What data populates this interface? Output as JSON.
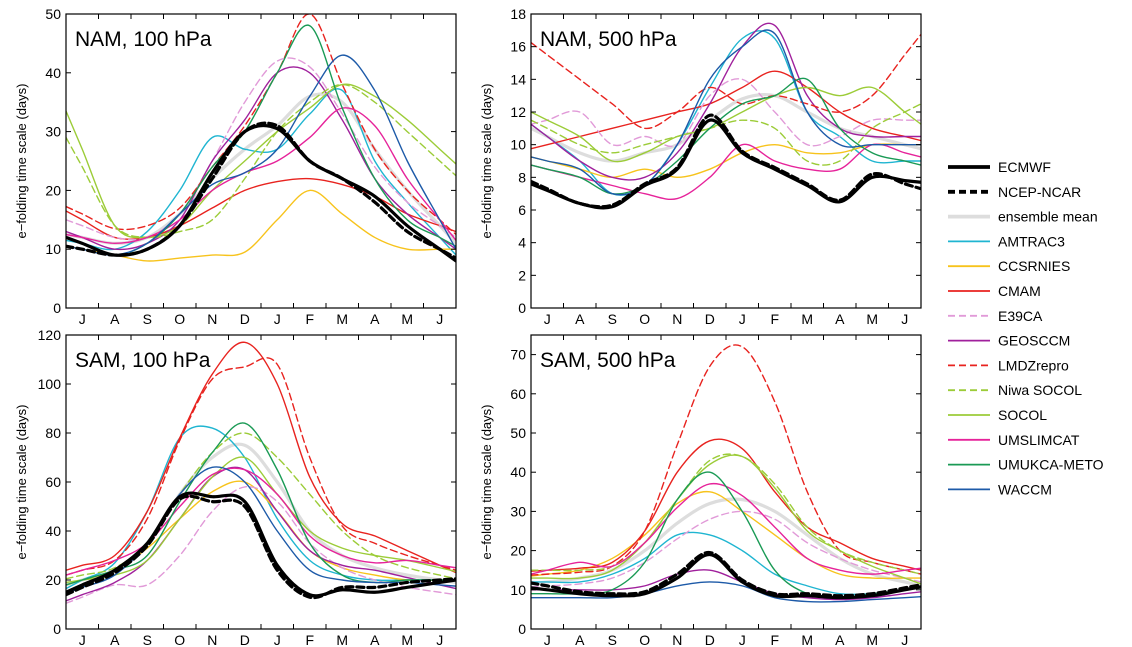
{
  "figure": {
    "legend": [
      "ECMWF",
      "NCEP-NCAR",
      "ensemble mean",
      "AMTRAC3",
      "CCSRNIES",
      "CMAM",
      "E39CA",
      "GEOSCCM",
      "LMDZrepro",
      "Niwa SOCOL",
      "SOCOL",
      "UMSLIMCAT",
      "UMUKCA-METO",
      "WACCM"
    ],
    "series_style": {
      "ECMWF": {
        "color": "#000000",
        "dash": "solid",
        "width": "thick"
      },
      "NCEP-NCAR": {
        "color": "#000000",
        "dash": "dashed",
        "width": "thick"
      },
      "ensemble mean": {
        "color": "#dddddd",
        "dash": "solid",
        "width": "thick"
      },
      "AMTRAC3": {
        "color": "#1fb5d1",
        "dash": "solid",
        "width": "thin"
      },
      "CCSRNIES": {
        "color": "#f7c31c",
        "dash": "solid",
        "width": "thin"
      },
      "CMAM": {
        "color": "#e8231f",
        "dash": "solid",
        "width": "thin"
      },
      "E39CA": {
        "color": "#e19ad8",
        "dash": "dashed",
        "width": "thin"
      },
      "GEOSCCM": {
        "color": "#a0209c",
        "dash": "solid",
        "width": "thin"
      },
      "LMDZrepro": {
        "color": "#e8231f",
        "dash": "dashed",
        "width": "thin"
      },
      "Niwa SOCOL": {
        "color": "#9ccc38",
        "dash": "dashed",
        "width": "thin"
      },
      "SOCOL": {
        "color": "#9ccc38",
        "dash": "solid",
        "width": "thin"
      },
      "UMSLIMCAT": {
        "color": "#e6239a",
        "dash": "solid",
        "width": "thin"
      },
      "UMUKCA-METO": {
        "color": "#1a9a55",
        "dash": "solid",
        "width": "thin"
      },
      "WACCM": {
        "color": "#1d5aa8",
        "dash": "solid",
        "width": "thin"
      }
    }
  },
  "chart_data": [
    {
      "type": "line",
      "title": "NAM, 100 hPa",
      "xlabel": "",
      "ylabel": "e−folding time scale (days)",
      "categories": [
        "J",
        "A",
        "S",
        "O",
        "N",
        "D",
        "J",
        "F",
        "M",
        "A",
        "M",
        "J"
      ],
      "ylim": [
        0,
        50
      ],
      "yticks": [
        0,
        10,
        20,
        30,
        40,
        50
      ],
      "series": [
        {
          "name": "ECMWF",
          "values": [
            11,
            9,
            10,
            14,
            23,
            30,
            30.5,
            25,
            22,
            19,
            14,
            10
          ]
        },
        {
          "name": "NCEP-NCAR",
          "values": [
            10,
            9,
            10,
            14,
            22,
            30,
            31,
            25,
            22,
            18,
            13,
            10
          ]
        },
        {
          "name": "ensemble mean",
          "values": [
            12,
            11,
            12,
            16,
            22,
            27,
            31,
            36,
            35,
            27,
            20,
            14
          ]
        },
        {
          "name": "AMTRAC3",
          "values": [
            11,
            10,
            13,
            20,
            29,
            27,
            27,
            33,
            37,
            25,
            18,
            12
          ]
        },
        {
          "name": "CCSRNIES",
          "values": [
            10,
            9,
            8,
            8.5,
            9,
            9.5,
            15,
            20,
            16,
            12,
            10,
            10
          ]
        },
        {
          "name": "CMAM",
          "values": [
            15,
            12,
            12,
            14,
            17,
            20,
            21.5,
            22,
            21,
            19,
            16,
            14
          ]
        },
        {
          "name": "E39CA",
          "values": [
            14,
            12,
            12,
            16,
            25,
            35,
            42,
            41,
            33,
            24,
            18,
            14
          ]
        },
        {
          "name": "GEOSCCM",
          "values": [
            12,
            10,
            11,
            15,
            25,
            32,
            40,
            40,
            32,
            22,
            16,
            12
          ]
        },
        {
          "name": "LMDZrepro",
          "values": [
            16,
            13.5,
            14,
            17,
            24,
            31,
            40,
            50,
            38,
            27,
            20,
            15
          ]
        },
        {
          "name": "Niwa SOCOL",
          "values": [
            24,
            14,
            12,
            13,
            15,
            22,
            30,
            35,
            38,
            35,
            30,
            25
          ]
        },
        {
          "name": "SOCOL",
          "values": [
            27,
            14,
            12,
            14,
            20,
            25,
            30,
            34,
            38,
            36,
            32,
            27
          ]
        },
        {
          "name": "UMSLIMCAT",
          "values": [
            12,
            11,
            12,
            15,
            20,
            23,
            25,
            29,
            34,
            31,
            22,
            15
          ]
        },
        {
          "name": "UMUKCA-METO",
          "values": [
            11,
            9,
            11,
            16,
            24,
            30,
            40,
            48,
            34,
            22,
            15,
            12
          ]
        },
        {
          "name": "WACCM",
          "values": [
            10,
            9,
            11,
            16,
            21,
            23,
            27,
            36,
            43,
            37,
            25,
            15
          ]
        }
      ]
    },
    {
      "type": "line",
      "title": "NAM, 500 hPa",
      "xlabel": "",
      "ylabel": "e−folding time scale (days)",
      "categories": [
        "J",
        "A",
        "S",
        "O",
        "N",
        "D",
        "J",
        "F",
        "M",
        "A",
        "M",
        "J"
      ],
      "ylim": [
        0,
        18
      ],
      "yticks": [
        0,
        2,
        4,
        6,
        8,
        10,
        12,
        14,
        16,
        18
      ],
      "series": [
        {
          "name": "ECMWF",
          "values": [
            7.2,
            6.4,
            6.2,
            7.5,
            8.5,
            11.5,
            9.5,
            8.5,
            7.5,
            6.5,
            8,
            7.8
          ]
        },
        {
          "name": "NCEP-NCAR",
          "values": [
            7.3,
            6.4,
            6.3,
            7.6,
            8.6,
            11.8,
            9.6,
            8.6,
            7.6,
            6.6,
            8.2,
            7.6
          ]
        },
        {
          "name": "ensemble mean",
          "values": [
            10.5,
            9.5,
            9,
            9.5,
            10,
            11.5,
            12.8,
            13,
            12,
            11,
            10.5,
            10
          ]
        },
        {
          "name": "AMTRAC3",
          "values": [
            10.5,
            9,
            7,
            7.5,
            10,
            13.5,
            16.5,
            16.5,
            12,
            10.5,
            9,
            9
          ]
        },
        {
          "name": "CCSRNIES",
          "values": [
            9,
            8.5,
            8,
            8.5,
            8,
            8.5,
            9.5,
            10,
            9.5,
            9.5,
            10,
            10
          ]
        },
        {
          "name": "CMAM",
          "values": [
            10,
            10.5,
            11,
            11.5,
            12,
            12.5,
            13.5,
            14.5,
            13.5,
            12,
            11,
            10.5
          ]
        },
        {
          "name": "E39CA",
          "values": [
            11.5,
            12,
            10,
            10.5,
            10,
            13,
            14,
            12,
            10,
            10.5,
            11.5,
            11.5
          ]
        },
        {
          "name": "GEOSCCM",
          "values": [
            10.5,
            9,
            8,
            8,
            9.5,
            12.5,
            16,
            17.3,
            13,
            11,
            10.5,
            10.5
          ]
        },
        {
          "name": "LMDZrepro",
          "values": [
            15.5,
            14,
            12.5,
            11,
            12,
            13.5,
            12.5,
            13,
            12.5,
            12,
            13,
            15.5
          ]
        },
        {
          "name": "Niwa SOCOL",
          "values": [
            11,
            10,
            9.5,
            10,
            10.5,
            11,
            11.5,
            11,
            9,
            9,
            11,
            12
          ]
        },
        {
          "name": "SOCOL",
          "values": [
            11.5,
            10.5,
            9,
            9.5,
            10.5,
            11,
            12,
            13,
            13.5,
            13,
            13.5,
            12
          ]
        },
        {
          "name": "UMSLIMCAT",
          "values": [
            8.5,
            8,
            7.5,
            7,
            6.7,
            8,
            10,
            9,
            8.5,
            8.5,
            10,
            9.5
          ]
        },
        {
          "name": "UMUKCA-METO",
          "values": [
            8.5,
            8,
            7,
            7.5,
            9,
            11,
            12.5,
            13,
            14,
            11,
            9.5,
            9
          ]
        },
        {
          "name": "WACCM",
          "values": [
            9,
            8.5,
            7,
            7.5,
            10,
            14,
            16,
            16.8,
            12,
            10,
            10,
            10
          ]
        }
      ]
    },
    {
      "type": "line",
      "title": "SAM, 100 hPa",
      "xlabel": "",
      "ylabel": "e−folding time scale (days)",
      "categories": [
        "J",
        "A",
        "S",
        "O",
        "N",
        "D",
        "J",
        "F",
        "M",
        "A",
        "M",
        "J"
      ],
      "ylim": [
        0,
        120
      ],
      "yticks": [
        0,
        20,
        40,
        60,
        80,
        100,
        120
      ],
      "series": [
        {
          "name": "ECMWF",
          "values": [
            18,
            24,
            35,
            54,
            54,
            52,
            26,
            14,
            16,
            15,
            17,
            19
          ]
        },
        {
          "name": "NCEP-NCAR",
          "values": [
            17,
            23,
            34,
            53,
            52,
            50,
            24,
            13,
            17,
            17,
            19,
            20
          ]
        },
        {
          "name": "ensemble mean",
          "values": [
            20,
            24,
            34,
            55,
            70,
            75,
            60,
            40,
            30,
            25,
            22,
            20
          ]
        },
        {
          "name": "AMTRAC3",
          "values": [
            20,
            27,
            48,
            78,
            82,
            70,
            45,
            28,
            22,
            20,
            20,
            20
          ]
        },
        {
          "name": "CCSRNIES",
          "values": [
            20,
            24,
            33,
            45,
            56,
            60,
            48,
            32,
            25,
            22,
            20,
            20
          ]
        },
        {
          "name": "CMAM",
          "values": [
            26,
            30,
            48,
            78,
            104,
            117,
            100,
            62,
            43,
            38,
            32,
            26
          ]
        },
        {
          "name": "E39CA",
          "values": [
            13,
            18,
            18,
            30,
            48,
            58,
            52,
            35,
            25,
            20,
            17,
            15
          ]
        },
        {
          "name": "GEOSCCM",
          "values": [
            14,
            19,
            28,
            45,
            62,
            65,
            48,
            32,
            26,
            24,
            21,
            18
          ]
        },
        {
          "name": "LMDZrepro",
          "values": [
            24,
            28,
            45,
            77,
            102,
            107,
            108,
            70,
            42,
            35,
            30,
            26
          ]
        },
        {
          "name": "Niwa SOCOL",
          "values": [
            22,
            25,
            35,
            55,
            72,
            80,
            70,
            55,
            40,
            30,
            25,
            22
          ]
        },
        {
          "name": "SOCOL",
          "values": [
            20,
            22,
            28,
            45,
            62,
            70,
            55,
            40,
            33,
            30,
            28,
            25
          ]
        },
        {
          "name": "UMSLIMCAT",
          "values": [
            24,
            28,
            35,
            50,
            63,
            65,
            55,
            38,
            30,
            27,
            28,
            26
          ]
        },
        {
          "name": "UMUKCA-METO",
          "values": [
            20,
            24,
            30,
            52,
            72,
            84,
            65,
            35,
            22,
            19,
            20,
            20
          ]
        },
        {
          "name": "WACCM",
          "values": [
            17,
            22,
            35,
            55,
            66,
            60,
            40,
            24,
            20,
            19,
            19,
            18
          ]
        }
      ]
    },
    {
      "type": "line",
      "title": "SAM, 500 hPa",
      "xlabel": "",
      "ylabel": "e−folding time scale (days)",
      "categories": [
        "J",
        "A",
        "S",
        "O",
        "N",
        "D",
        "J",
        "F",
        "M",
        "A",
        "M",
        "J"
      ],
      "ylim": [
        0,
        75
      ],
      "yticks": [
        0,
        10,
        20,
        30,
        40,
        50,
        60,
        70
      ],
      "series": [
        {
          "name": "ECMWF",
          "values": [
            10,
            9,
            8.5,
            9,
            13,
            19,
            12,
            8.5,
            8.5,
            8,
            8.5,
            10
          ]
        },
        {
          "name": "NCEP-NCAR",
          "values": [
            11,
            9.5,
            9,
            9.5,
            14,
            19.5,
            12.5,
            9,
            9,
            8.5,
            9,
            10.5
          ]
        },
        {
          "name": "ensemble mean",
          "values": [
            12,
            13,
            15,
            20,
            27,
            32,
            33,
            30,
            24,
            18,
            14,
            12
          ]
        },
        {
          "name": "AMTRAC3",
          "values": [
            12,
            12,
            14,
            18,
            24,
            24,
            20,
            14,
            11,
            9,
            9,
            10
          ]
        },
        {
          "name": "CCSRNIES",
          "values": [
            14,
            15,
            18,
            24,
            32,
            35,
            30,
            24,
            18,
            14,
            13,
            13
          ]
        },
        {
          "name": "CMAM",
          "values": [
            15,
            15.5,
            17,
            25,
            40,
            48,
            46,
            35,
            26,
            22,
            18,
            16
          ]
        },
        {
          "name": "E39CA",
          "values": [
            11,
            11.5,
            13,
            17,
            23,
            28,
            30,
            28,
            22,
            18,
            15,
            13
          ]
        },
        {
          "name": "GEOSCCM",
          "values": [
            10,
            10,
            10,
            11,
            14,
            15,
            12,
            9,
            8,
            7.5,
            8,
            9
          ]
        },
        {
          "name": "LMDZrepro",
          "values": [
            14,
            14.5,
            16,
            25,
            47,
            67,
            72,
            58,
            35,
            20,
            17,
            15
          ]
        },
        {
          "name": "Niwa SOCOL",
          "values": [
            15,
            15,
            16,
            22,
            33,
            43,
            44,
            37,
            26,
            20,
            17,
            15
          ]
        },
        {
          "name": "SOCOL",
          "values": [
            13,
            13,
            15,
            22,
            33,
            42,
            44,
            36,
            25,
            20,
            16,
            13
          ]
        },
        {
          "name": "UMSLIMCAT",
          "values": [
            15,
            17,
            16,
            22,
            31,
            37,
            34,
            26,
            18,
            15,
            14,
            15
          ]
        },
        {
          "name": "UMUKCA-METO",
          "values": [
            9,
            9,
            10,
            17,
            33,
            40,
            30,
            15,
            9,
            8,
            9,
            10
          ]
        },
        {
          "name": "WACCM",
          "values": [
            8,
            8,
            8,
            9,
            11,
            12,
            11,
            8,
            7,
            7,
            7.5,
            8
          ]
        }
      ]
    }
  ]
}
